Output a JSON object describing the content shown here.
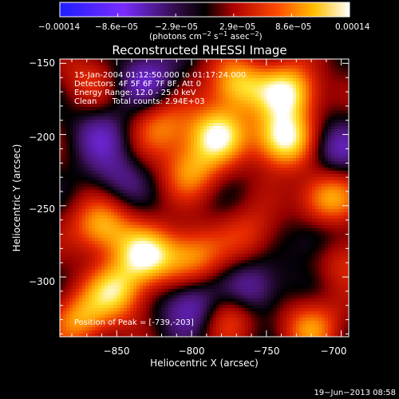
{
  "colorbar": {
    "tick_labels": [
      "−0.00014",
      "−8.6e−05",
      "−2.9e−05",
      "2.9e−05",
      "8.6e−05",
      "0.00014"
    ],
    "unit_label": "(photons cm",
    "unit_exp1": "−2",
    "unit_mid": " s",
    "unit_exp2": "−1",
    "unit_mid2": " asec",
    "unit_exp3": "−2",
    "unit_end": ")"
  },
  "chart_data": {
    "type": "heatmap",
    "title": "Reconstructed RHESSI Image",
    "xlabel": "Heliocentric X (arcsec)",
    "ylabel": "Heliocentric Y (arcsec)",
    "xlim": [
      -888,
      -695
    ],
    "ylim": [
      -342,
      -147
    ],
    "x_ticks": [
      -850,
      -800,
      -750,
      -700
    ],
    "y_ticks": [
      -150,
      -200,
      -250,
      -300
    ],
    "x_tick_labels": [
      "−850",
      "−800",
      "−750",
      "−700"
    ],
    "y_tick_labels": [
      "−150",
      "−200",
      "−250",
      "−300"
    ],
    "colorbar_range": [
      -0.00014,
      0.00014
    ],
    "annotations": [
      "15-Jan-2004 01:12:50.000 to 01:17:24.000",
      "Detectors: 4F 5F 6F 7F 8F, Att 0",
      "Energy Range: 12.0 - 25.0 keV",
      "Clean      Total counts: 2.94E+03"
    ],
    "peak_label": "Position of Peak = [-739,-203]",
    "peak": [
      -739,
      -203
    ],
    "sources": [
      {
        "x": -739,
        "y": -203,
        "amp": 1.0
      },
      {
        "x": -735,
        "y": -170,
        "amp": 0.9
      },
      {
        "x": -770,
        "y": -165,
        "amp": 0.75
      },
      {
        "x": -783,
        "y": -200,
        "amp": 0.85
      },
      {
        "x": -800,
        "y": -225,
        "amp": 0.55
      },
      {
        "x": -830,
        "y": -285,
        "amp": 0.85
      },
      {
        "x": -860,
        "y": -265,
        "amp": 0.7
      },
      {
        "x": -850,
        "y": -310,
        "amp": 0.75
      },
      {
        "x": -800,
        "y": -285,
        "amp": 0.6
      },
      {
        "x": -820,
        "y": -195,
        "amp": 0.5
      },
      {
        "x": -710,
        "y": -245,
        "amp": 0.7
      },
      {
        "x": -700,
        "y": -285,
        "amp": 0.45
      },
      {
        "x": -720,
        "y": -335,
        "amp": 0.55
      },
      {
        "x": -775,
        "y": -325,
        "amp": 0.5
      },
      {
        "x": -875,
        "y": -330,
        "amp": 0.6
      },
      {
        "x": -760,
        "y": -270,
        "amp": 0.35
      },
      {
        "x": -870,
        "y": -160,
        "amp": 0.3
      },
      {
        "x": -760,
        "y": -310,
        "amp": -0.5
      },
      {
        "x": -830,
        "y": -160,
        "amp": -0.45
      },
      {
        "x": -860,
        "y": -200,
        "amp": -0.35
      },
      {
        "x": -705,
        "y": -210,
        "amp": -0.4
      },
      {
        "x": -715,
        "y": -275,
        "amp": -0.4
      },
      {
        "x": -800,
        "y": -320,
        "amp": -0.55
      },
      {
        "x": -850,
        "y": -230,
        "amp": -0.3
      }
    ]
  },
  "timestamp": "19−Jun−2013 08:58"
}
